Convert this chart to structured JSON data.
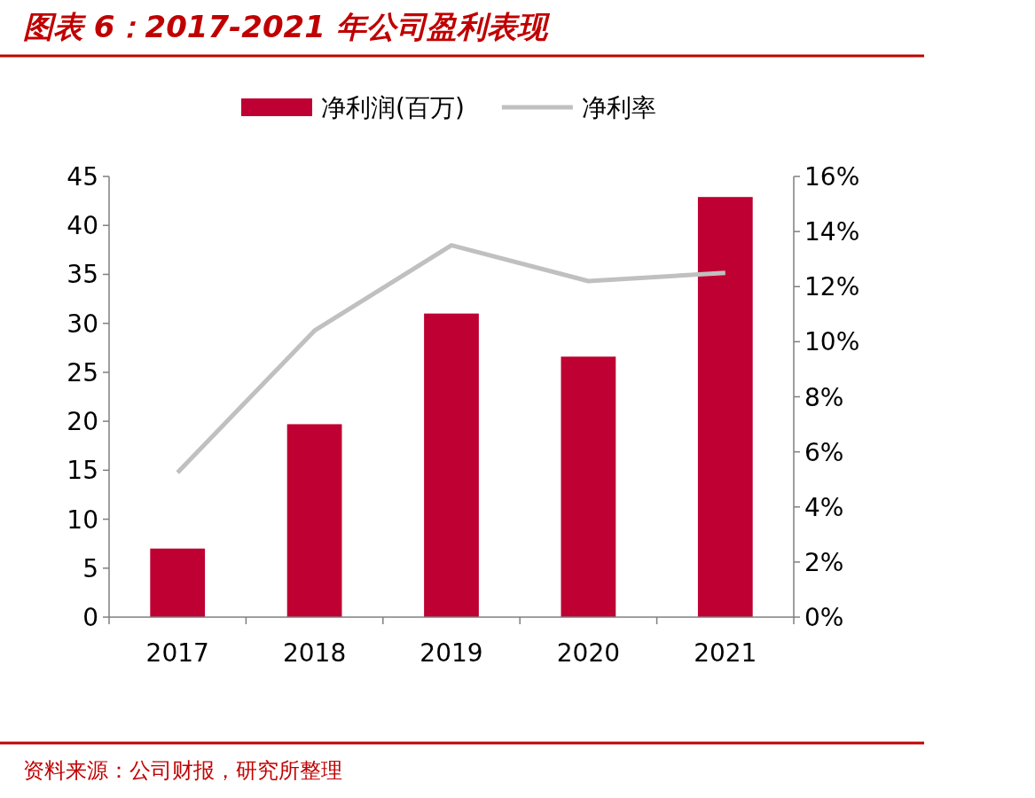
{
  "chart_data": {
    "type": "bar",
    "title": "图表 6：2017-2021 年公司盈利表现",
    "categories": [
      "2017",
      "2018",
      "2019",
      "2020",
      "2021"
    ],
    "series": [
      {
        "name": "净利润(百万)",
        "color": "#be0032",
        "values": [
          7.0,
          19.7,
          31.0,
          26.6,
          42.9
        ]
      },
      {
        "name": "净利率",
        "type": "line",
        "axis": "y2",
        "color": "#c0c0c0",
        "values": [
          5.25,
          10.4,
          13.5,
          12.2,
          12.5
        ]
      }
    ],
    "ylim": [
      0,
      45
    ],
    "yticks": [
      0,
      5,
      10,
      15,
      20,
      25,
      30,
      35,
      40,
      45
    ],
    "y2lim": [
      0,
      16
    ],
    "y2ticks": [
      {
        "value": 0,
        "label": "0%"
      },
      {
        "value": 2,
        "label": "2%"
      },
      {
        "value": 4,
        "label": "4%"
      },
      {
        "value": 6,
        "label": "6%"
      },
      {
        "value": 8,
        "label": "8%"
      },
      {
        "value": 10,
        "label": "10%"
      },
      {
        "value": 12,
        "label": "12%"
      },
      {
        "value": 14,
        "label": "14%"
      },
      {
        "value": 16,
        "label": "16%"
      }
    ],
    "legend": "top",
    "grid": false,
    "marker": "none",
    "line_style": "solid",
    "annotations": [
      "资料来源：公司财报，研究所整理"
    ]
  }
}
